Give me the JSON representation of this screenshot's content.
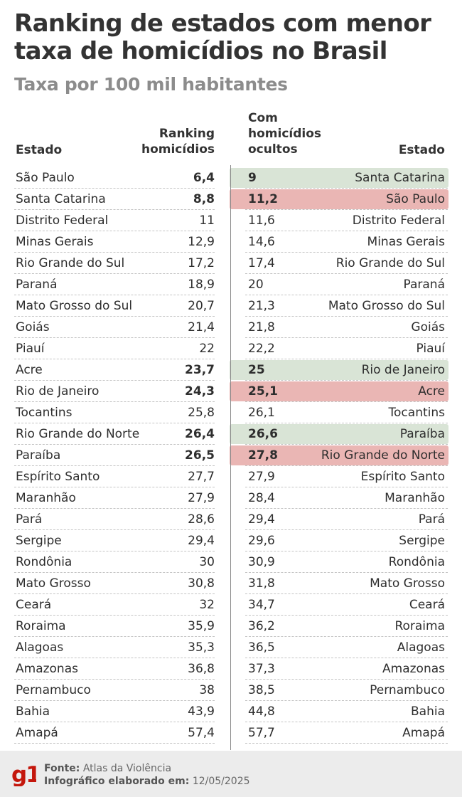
{
  "header": {
    "title": "Ranking de estados com menor taxa de homicídios no Brasil",
    "subtitle": "Taxa por 100 mil habitantes"
  },
  "columns": {
    "left_state": "Estado",
    "left_rank": [
      "Ranking",
      "homicídios"
    ],
    "right_value": [
      "Com",
      "homicídios",
      "ocultos"
    ],
    "right_state": "Estado"
  },
  "colors": {
    "green_highlight": "#d9e4d6",
    "red_highlight": "#eab6b4",
    "logo_red": "#c4170c"
  },
  "chart_data": {
    "type": "table",
    "title": "Ranking de estados com menor taxa de homicídios no Brasil",
    "subtitle": "Taxa por 100 mil habitantes",
    "rows": [
      {
        "left_state": "São Paulo",
        "left_value": "6,4",
        "right_value": "9",
        "right_state": "Santa Catarina",
        "bold": true,
        "highlight": "green"
      },
      {
        "left_state": "Santa Catarina",
        "left_value": "8,8",
        "right_value": "11,2",
        "right_state": "São Paulo",
        "bold": true,
        "highlight": "red"
      },
      {
        "left_state": "Distrito Federal",
        "left_value": "11",
        "right_value": "11,6",
        "right_state": "Distrito Federal",
        "bold": false,
        "highlight": "none"
      },
      {
        "left_state": "Minas Gerais",
        "left_value": "12,9",
        "right_value": "14,6",
        "right_state": "Minas Gerais",
        "bold": false,
        "highlight": "none"
      },
      {
        "left_state": "Rio Grande do Sul",
        "left_value": "17,2",
        "right_value": "17,4",
        "right_state": "Rio Grande do Sul",
        "bold": false,
        "highlight": "none"
      },
      {
        "left_state": "Paraná",
        "left_value": "18,9",
        "right_value": "20",
        "right_state": "Paraná",
        "bold": false,
        "highlight": "none"
      },
      {
        "left_state": "Mato Grosso do Sul",
        "left_value": "20,7",
        "right_value": "21,3",
        "right_state": "Mato Grosso do Sul",
        "bold": false,
        "highlight": "none"
      },
      {
        "left_state": "Goiás",
        "left_value": "21,4",
        "right_value": "21,8",
        "right_state": "Goiás",
        "bold": false,
        "highlight": "none"
      },
      {
        "left_state": "Piauí",
        "left_value": "22",
        "right_value": "22,2",
        "right_state": "Piauí",
        "bold": false,
        "highlight": "none"
      },
      {
        "left_state": "Acre",
        "left_value": "23,7",
        "right_value": "25",
        "right_state": "Rio de Janeiro",
        "bold": true,
        "highlight": "green"
      },
      {
        "left_state": "Rio de Janeiro",
        "left_value": "24,3",
        "right_value": "25,1",
        "right_state": "Acre",
        "bold": true,
        "highlight": "red"
      },
      {
        "left_state": "Tocantins",
        "left_value": "25,8",
        "right_value": "26,1",
        "right_state": "Tocantins",
        "bold": false,
        "highlight": "none"
      },
      {
        "left_state": "Rio Grande do Norte",
        "left_value": "26,4",
        "right_value": "26,6",
        "right_state": "Paraíba",
        "bold": true,
        "highlight": "green"
      },
      {
        "left_state": "Paraíba",
        "left_value": "26,5",
        "right_value": "27,8",
        "right_state": "Rio Grande do Norte",
        "bold": true,
        "highlight": "red"
      },
      {
        "left_state": "Espírito Santo",
        "left_value": "27,7",
        "right_value": "27,9",
        "right_state": "Espírito Santo",
        "bold": false,
        "highlight": "none"
      },
      {
        "left_state": "Maranhão",
        "left_value": "27,9",
        "right_value": "28,4",
        "right_state": "Maranhão",
        "bold": false,
        "highlight": "none"
      },
      {
        "left_state": "Pará",
        "left_value": "28,6",
        "right_value": "29,4",
        "right_state": "Pará",
        "bold": false,
        "highlight": "none"
      },
      {
        "left_state": "Sergipe",
        "left_value": "29,4",
        "right_value": "29,6",
        "right_state": "Sergipe",
        "bold": false,
        "highlight": "none"
      },
      {
        "left_state": "Rondônia",
        "left_value": "30",
        "right_value": "30,9",
        "right_state": "Rondônia",
        "bold": false,
        "highlight": "none"
      },
      {
        "left_state": "Mato Grosso",
        "left_value": "30,8",
        "right_value": "31,8",
        "right_state": "Mato Grosso",
        "bold": false,
        "highlight": "none"
      },
      {
        "left_state": "Ceará",
        "left_value": "32",
        "right_value": "34,7",
        "right_state": "Ceará",
        "bold": false,
        "highlight": "none"
      },
      {
        "left_state": "Roraima",
        "left_value": "35,9",
        "right_value": "36,2",
        "right_state": "Roraima",
        "bold": false,
        "highlight": "none"
      },
      {
        "left_state": "Alagoas",
        "left_value": "35,3",
        "right_value": "36,5",
        "right_state": "Alagoas",
        "bold": false,
        "highlight": "none"
      },
      {
        "left_state": "Amazonas",
        "left_value": "36,8",
        "right_value": "37,3",
        "right_state": "Amazonas",
        "bold": false,
        "highlight": "none"
      },
      {
        "left_state": "Pernambuco",
        "left_value": "38",
        "right_value": "38,5",
        "right_state": "Pernambuco",
        "bold": false,
        "highlight": "none"
      },
      {
        "left_state": "Bahia",
        "left_value": "43,9",
        "right_value": "44,8",
        "right_state": "Bahia",
        "bold": false,
        "highlight": "none"
      },
      {
        "left_state": "Amapá",
        "left_value": "57,4",
        "right_value": "57,7",
        "right_state": "Amapá",
        "bold": false,
        "highlight": "none"
      }
    ]
  },
  "footer": {
    "logo_text": "g1",
    "source_label": "Fonte:",
    "source_value": "Atlas da Violência",
    "date_label": "Infográfico elaborado em:",
    "date_value": "12/05/2025"
  }
}
